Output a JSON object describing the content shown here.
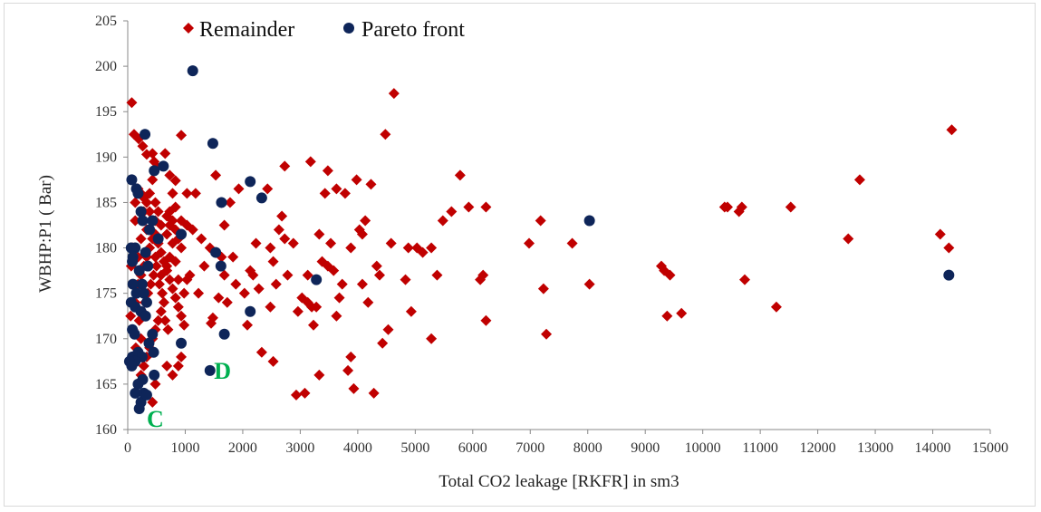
{
  "chart_data": {
    "type": "scatter",
    "xlabel": "Total CO2 leakage [RKFR] in sm3",
    "ylabel": "WBHP:P1 ( Bar)",
    "xlim": [
      0,
      15000
    ],
    "ylim": [
      160,
      205
    ],
    "xticks": [
      0,
      1000,
      2000,
      3000,
      4000,
      5000,
      6000,
      7000,
      8000,
      9000,
      10000,
      11000,
      12000,
      13000,
      14000,
      15000
    ],
    "yticks": [
      160,
      165,
      170,
      175,
      180,
      185,
      190,
      195,
      200,
      205
    ],
    "grid": false,
    "legend_position": "top-left",
    "colors": {
      "remainder": "#c00000",
      "pareto": "#0e2559",
      "annotation": "#00b050"
    },
    "annotations": [
      {
        "text": "D",
        "x": 1500,
        "y": 166.5
      },
      {
        "text": "C",
        "x": 330,
        "y": 161.2
      }
    ],
    "series": [
      {
        "name": "Remainder",
        "marker": "diamond",
        "points": [
          [
            70,
            196
          ],
          [
            110,
            192.5
          ],
          [
            190,
            192
          ],
          [
            260,
            191.2
          ],
          [
            330,
            190.3
          ],
          [
            430,
            190.4
          ],
          [
            460,
            189.5
          ],
          [
            510,
            188.9
          ],
          [
            650,
            190.4
          ],
          [
            730,
            188
          ],
          [
            830,
            187.4
          ],
          [
            930,
            192.4
          ],
          [
            1030,
            186
          ],
          [
            1180,
            186
          ],
          [
            1280,
            181
          ],
          [
            1130,
            182
          ],
          [
            1030,
            182.5
          ],
          [
            930,
            183
          ],
          [
            830,
            184.5
          ],
          [
            730,
            184
          ],
          [
            680,
            181.5
          ],
          [
            580,
            182.5
          ],
          [
            480,
            183
          ],
          [
            380,
            184
          ],
          [
            330,
            185
          ],
          [
            280,
            185.5
          ],
          [
            230,
            186
          ],
          [
            180,
            186.5
          ],
          [
            130,
            185
          ],
          [
            90,
            180
          ],
          [
            60,
            178
          ],
          [
            50,
            172.5
          ],
          [
            90,
            171
          ],
          [
            130,
            174
          ],
          [
            180,
            176
          ],
          [
            230,
            177
          ],
          [
            280,
            178
          ],
          [
            330,
            179
          ],
          [
            380,
            180
          ],
          [
            430,
            181
          ],
          [
            480,
            181.5
          ],
          [
            530,
            180.5
          ],
          [
            580,
            179.5
          ],
          [
            630,
            178.5
          ],
          [
            680,
            177.5
          ],
          [
            730,
            176.5
          ],
          [
            780,
            175.5
          ],
          [
            830,
            174.5
          ],
          [
            880,
            173.5
          ],
          [
            930,
            172.5
          ],
          [
            980,
            171.5
          ],
          [
            880,
            176.5
          ],
          [
            830,
            178.5
          ],
          [
            780,
            180.5
          ],
          [
            730,
            182.5
          ],
          [
            680,
            183.5
          ],
          [
            980,
            175
          ],
          [
            1030,
            176.5
          ],
          [
            1080,
            177
          ],
          [
            930,
            180
          ],
          [
            880,
            181
          ],
          [
            830,
            182
          ],
          [
            780,
            183
          ],
          [
            630,
            174
          ],
          [
            580,
            173
          ],
          [
            530,
            172
          ],
          [
            480,
            171
          ],
          [
            430,
            170
          ],
          [
            380,
            169
          ],
          [
            330,
            168
          ],
          [
            280,
            167
          ],
          [
            230,
            166
          ],
          [
            180,
            168
          ],
          [
            140,
            169
          ],
          [
            200,
            172
          ],
          [
            250,
            173
          ],
          [
            300,
            174
          ],
          [
            350,
            175
          ],
          [
            400,
            176
          ],
          [
            450,
            177
          ],
          [
            500,
            178
          ],
          [
            550,
            176
          ],
          [
            600,
            175
          ],
          [
            650,
            172
          ],
          [
            700,
            171
          ],
          [
            480,
            165
          ],
          [
            430,
            163
          ],
          [
            230,
            170
          ],
          [
            180,
            179
          ],
          [
            280,
            184
          ],
          [
            380,
            186
          ],
          [
            430,
            187.5
          ],
          [
            480,
            185
          ],
          [
            530,
            184
          ],
          [
            330,
            182
          ],
          [
            230,
            181
          ],
          [
            130,
            183
          ],
          [
            480,
            179
          ],
          [
            380,
            178
          ],
          [
            580,
            177
          ],
          [
            680,
            178
          ],
          [
            730,
            179
          ],
          [
            780,
            186
          ],
          [
            1430,
            180
          ],
          [
            1480,
            172.3
          ],
          [
            1450,
            171.7
          ],
          [
            1530,
            188
          ],
          [
            1630,
            179
          ],
          [
            1680,
            177
          ],
          [
            1730,
            174
          ],
          [
            1780,
            185
          ],
          [
            1830,
            179
          ],
          [
            1880,
            176
          ],
          [
            1930,
            186.5
          ],
          [
            2030,
            175
          ],
          [
            2080,
            171.5
          ],
          [
            2130,
            177.5
          ],
          [
            2180,
            177
          ],
          [
            2230,
            180.5
          ],
          [
            2280,
            175.5
          ],
          [
            2330,
            168.5
          ],
          [
            2430,
            186.5
          ],
          [
            2480,
            180
          ],
          [
            2530,
            178.5
          ],
          [
            2480,
            173.5
          ],
          [
            2580,
            176
          ],
          [
            2680,
            183.5
          ],
          [
            2730,
            181
          ],
          [
            2780,
            177
          ],
          [
            2730,
            189
          ],
          [
            2880,
            180.5
          ],
          [
            2930,
            163.8
          ],
          [
            2960,
            173
          ],
          [
            3030,
            174.5
          ],
          [
            3130,
            174
          ],
          [
            3180,
            189.5
          ],
          [
            3200,
            173.5
          ],
          [
            3230,
            171.5
          ],
          [
            3280,
            173.5
          ],
          [
            3330,
            166
          ],
          [
            3380,
            178.5
          ],
          [
            3430,
            186
          ],
          [
            3480,
            188.5
          ],
          [
            3530,
            180.5
          ],
          [
            3580,
            177.5
          ],
          [
            3630,
            186.5
          ],
          [
            3680,
            174.5
          ],
          [
            3730,
            176
          ],
          [
            3780,
            186
          ],
          [
            3830,
            166.5
          ],
          [
            3880,
            168
          ],
          [
            3930,
            164.5
          ],
          [
            3980,
            187.5
          ],
          [
            4030,
            182
          ],
          [
            4080,
            181.5
          ],
          [
            4130,
            183
          ],
          [
            4180,
            174
          ],
          [
            4230,
            187
          ],
          [
            4280,
            164
          ],
          [
            4330,
            178
          ],
          [
            4380,
            177
          ],
          [
            4430,
            169.5
          ],
          [
            4480,
            192.5
          ],
          [
            4530,
            171
          ],
          [
            4580,
            180.5
          ],
          [
            4630,
            197
          ],
          [
            4830,
            176.5
          ],
          [
            4880,
            180
          ],
          [
            4930,
            173
          ],
          [
            5030,
            180
          ],
          [
            5130,
            179.5
          ],
          [
            5280,
            180
          ],
          [
            5280,
            170
          ],
          [
            5380,
            177
          ],
          [
            5480,
            183
          ],
          [
            5630,
            184
          ],
          [
            5780,
            188
          ],
          [
            5930,
            184.5
          ],
          [
            6130,
            176.5
          ],
          [
            6180,
            177
          ],
          [
            6230,
            184.5
          ],
          [
            6230,
            172
          ],
          [
            6980,
            180.5
          ],
          [
            7180,
            183
          ],
          [
            7230,
            175.5
          ],
          [
            7280,
            170.5
          ],
          [
            7730,
            180.5
          ],
          [
            8030,
            176
          ],
          [
            9280,
            178
          ],
          [
            9330,
            177.5
          ],
          [
            9380,
            172.5
          ],
          [
            9430,
            177
          ],
          [
            9630,
            172.8
          ],
          [
            10380,
            184.5
          ],
          [
            10430,
            184.5
          ],
          [
            10630,
            184
          ],
          [
            10680,
            184.5
          ],
          [
            10730,
            176.5
          ],
          [
            11280,
            173.5
          ],
          [
            11530,
            184.5
          ],
          [
            12530,
            181
          ],
          [
            12730,
            187.5
          ],
          [
            14130,
            181.5
          ],
          [
            14280,
            180
          ],
          [
            14330,
            193
          ],
          [
            3130,
            177
          ],
          [
            3330,
            181.5
          ],
          [
            3480,
            178
          ],
          [
            3630,
            172.5
          ],
          [
            3880,
            180
          ],
          [
            4080,
            176
          ],
          [
            1580,
            174.5
          ],
          [
            1680,
            182.5
          ],
          [
            2530,
            167.5
          ],
          [
            2630,
            182
          ],
          [
            930,
            168
          ],
          [
            880,
            167
          ],
          [
            780,
            166
          ],
          [
            680,
            167
          ],
          [
            1230,
            175
          ],
          [
            1330,
            178
          ],
          [
            3080,
            164
          ]
        ]
      },
      {
        "name": "Pareto front",
        "marker": "circle",
        "points": [
          [
            1130,
            199.5
          ],
          [
            300,
            192.5
          ],
          [
            1480,
            191.5
          ],
          [
            620,
            189
          ],
          [
            2130,
            187.3
          ],
          [
            70,
            187.5
          ],
          [
            460,
            188.5
          ],
          [
            150,
            186.5
          ],
          [
            180,
            186
          ],
          [
            2330,
            185.5
          ],
          [
            1630,
            185
          ],
          [
            230,
            184
          ],
          [
            260,
            183
          ],
          [
            430,
            183
          ],
          [
            380,
            182
          ],
          [
            930,
            181.5
          ],
          [
            530,
            181
          ],
          [
            130,
            180
          ],
          [
            60,
            180
          ],
          [
            90,
            179
          ],
          [
            80,
            178.5
          ],
          [
            310,
            179.5
          ],
          [
            350,
            178
          ],
          [
            200,
            177.5
          ],
          [
            1530,
            179.5
          ],
          [
            1620,
            178
          ],
          [
            250,
            176
          ],
          [
            90,
            176
          ],
          [
            150,
            175
          ],
          [
            280,
            175
          ],
          [
            330,
            174
          ],
          [
            60,
            174
          ],
          [
            130,
            173.5
          ],
          [
            230,
            173
          ],
          [
            310,
            172.5
          ],
          [
            2130,
            173
          ],
          [
            1680,
            170.5
          ],
          [
            80,
            171
          ],
          [
            120,
            170.5
          ],
          [
            430,
            170.5
          ],
          [
            370,
            169.5
          ],
          [
            930,
            169.5
          ],
          [
            80,
            168
          ],
          [
            180,
            168.5
          ],
          [
            450,
            168.5
          ],
          [
            250,
            168
          ],
          [
            130,
            167.5
          ],
          [
            30,
            167.5
          ],
          [
            70,
            167
          ],
          [
            3280,
            176.5
          ],
          [
            1430,
            166.5
          ],
          [
            460,
            166
          ],
          [
            260,
            165.5
          ],
          [
            180,
            165
          ],
          [
            130,
            164
          ],
          [
            280,
            164
          ],
          [
            230,
            163
          ],
          [
            330,
            163.8
          ],
          [
            200,
            162.3
          ],
          [
            8030,
            183
          ],
          [
            14280,
            177
          ]
        ]
      }
    ]
  }
}
